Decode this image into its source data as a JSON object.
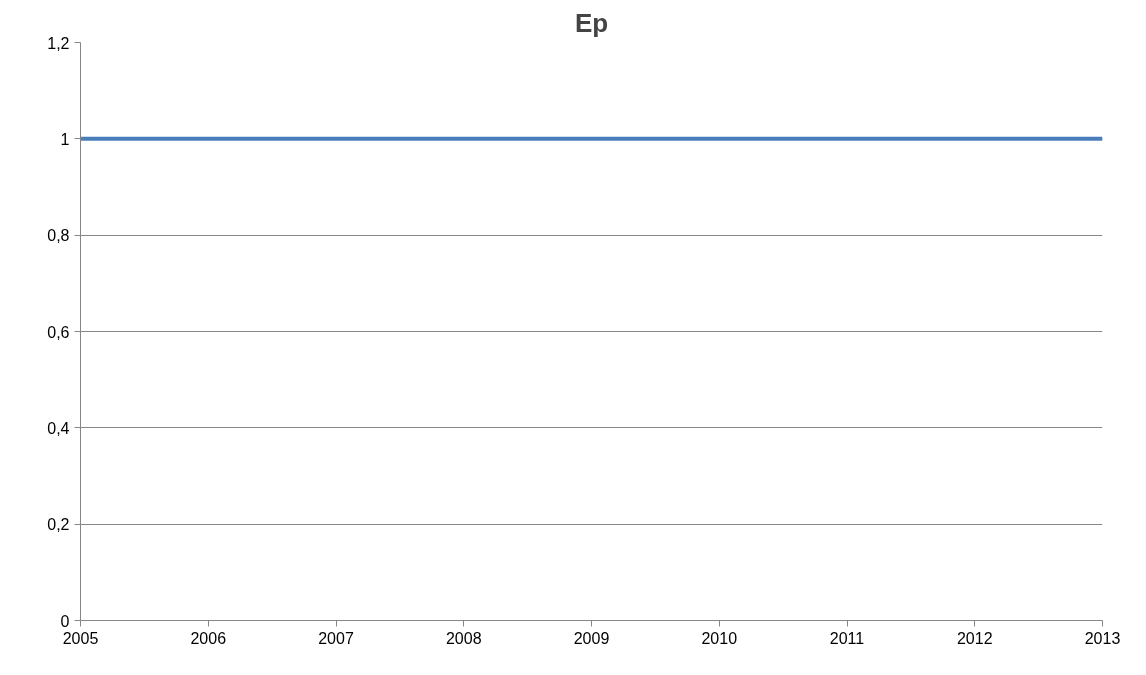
{
  "chart_data": {
    "type": "line",
    "title": "Ep",
    "categories": [
      "2005",
      "2006",
      "2007",
      "2008",
      "2009",
      "2010",
      "2011",
      "2012",
      "2013"
    ],
    "series": [
      {
        "color": "#4a7ebb",
        "values": [
          1,
          1,
          1,
          1,
          1,
          1,
          1,
          1,
          1
        ]
      }
    ],
    "ylim": [
      0,
      1.2
    ],
    "yticks": [
      {
        "value": 0,
        "label": "0"
      },
      {
        "value": 0.2,
        "label": "0,2"
      },
      {
        "value": 0.4,
        "label": "0,4"
      },
      {
        "value": 0.6,
        "label": "0,6"
      },
      {
        "value": 0.8,
        "label": "0,8"
      },
      {
        "value": 1,
        "label": "1"
      },
      {
        "value": 1.2,
        "label": "1,2"
      }
    ],
    "grid": "y",
    "marker": "none",
    "line_style": "solid"
  }
}
